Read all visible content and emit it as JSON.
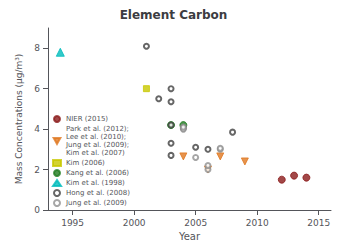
{
  "chart_data": {
    "type": "scatter",
    "title": "Element Carbon",
    "xlabel": "Year",
    "ylabel": "Mass Concentrations (μg/m³)",
    "xlim": [
      1993,
      2016
    ],
    "xticks": [
      1995,
      2000,
      2005,
      2010,
      2015
    ],
    "ylim": [
      0,
      9
    ],
    "yticks": [
      0,
      2,
      4,
      6,
      8
    ],
    "grid": false,
    "legend": "lower left",
    "series": [
      {
        "name": "NIER (2015)",
        "color": "#8B1A1A",
        "marker": "circle",
        "x": [
          2012,
          2013,
          2014
        ],
        "values": [
          1.5,
          1.7,
          1.6
        ]
      },
      {
        "name": "Park et al. (2012);\nLee et al. (2010);\nJung et al. (2009);\nKim et al. (2007)",
        "color": "#E07820",
        "marker": "triangle_down",
        "x": [
          2004,
          2006,
          2007,
          2009
        ],
        "values": [
          2.65,
          2.0,
          2.65,
          2.4
        ]
      },
      {
        "name": "Kim (2006)",
        "color": "#C8C800",
        "marker": "square",
        "x": [
          2001
        ],
        "values": [
          6.0
        ]
      },
      {
        "name": "Kang et al. (2006)",
        "color": "#1E7B1E",
        "marker": "circle",
        "x": [
          2003,
          2004
        ],
        "values": [
          4.2,
          4.2
        ]
      },
      {
        "name": "Kim et al. (1998)",
        "color": "#00BCBC",
        "marker": "triangle",
        "x": [
          1994
        ],
        "values": [
          7.8
        ]
      },
      {
        "name": "Hong et al. (2008)",
        "color": "#404040",
        "marker": "open_circle",
        "x": [
          2001,
          2002,
          2003,
          2003,
          2003,
          2003,
          2003,
          2004,
          2005,
          2006,
          2008
        ],
        "values": [
          8.1,
          5.5,
          6.0,
          5.35,
          3.3,
          2.7,
          4.2,
          4.05,
          3.1,
          3.0,
          3.85
        ]
      },
      {
        "name": "Jung et al. (2009)",
        "color": "#909090",
        "marker": "open_circle",
        "x": [
          2004,
          2004,
          2005,
          2006,
          2006,
          2007,
          2007
        ],
        "values": [
          4.0,
          4.1,
          2.6,
          2.0,
          2.2,
          3.0,
          3.05
        ]
      }
    ]
  }
}
